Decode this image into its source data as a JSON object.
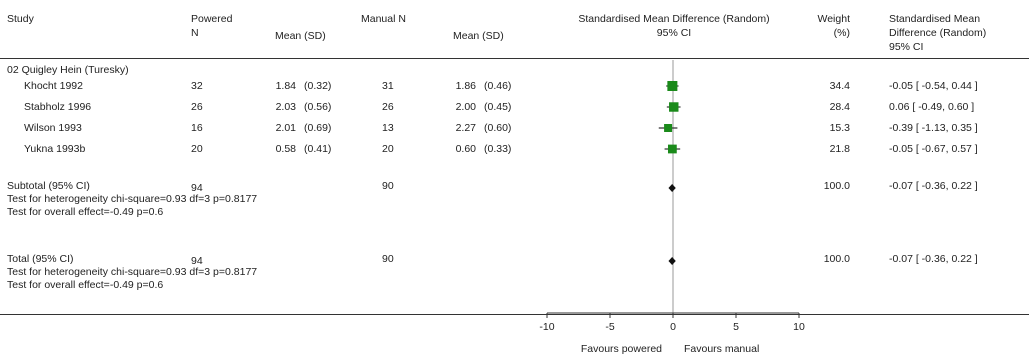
{
  "columns": {
    "study": "Study",
    "powered_n": [
      "Powered",
      "N"
    ],
    "powered_mean": "Mean (SD)",
    "manual_n": "Manual N",
    "manual_mean": "Mean (SD)",
    "effect_title": [
      "Standardised Mean Difference (Random)",
      "95% CI"
    ],
    "weight": [
      "Weight",
      "(%)"
    ],
    "effect_col": [
      "Standardised Mean",
      "Difference (Random)",
      "95% CI"
    ]
  },
  "group": {
    "name": "02 Quigley Hein (Turesky)",
    "studies": [
      {
        "name": "Khocht 1992",
        "pn": "32",
        "pmean": "1.84",
        "psd": "(0.32)",
        "mn": "31",
        "mmean": "1.86",
        "msd": "(0.46)",
        "weight": "34.4",
        "ci": "-0.05 [ -0.54, 0.44 ]"
      },
      {
        "name": "Stabholz 1996",
        "pn": "26",
        "pmean": "2.03",
        "psd": "(0.56)",
        "mn": "26",
        "mmean": "2.00",
        "msd": "(0.45)",
        "weight": "28.4",
        "ci": "0.06 [ -0.49, 0.60 ]"
      },
      {
        "name": "Wilson 1993",
        "pn": "16",
        "pmean": "2.01",
        "psd": "(0.69)",
        "mn": "13",
        "mmean": "2.27",
        "msd": "(0.60)",
        "weight": "15.3",
        "ci": "-0.39 [ -1.13, 0.35 ]"
      },
      {
        "name": "Yukna 1993b",
        "pn": "20",
        "pmean": "0.58",
        "psd": "(0.41)",
        "mn": "20",
        "mmean": "0.60",
        "msd": "(0.33)",
        "weight": "21.8",
        "ci": "-0.05 [ -0.67, 0.57 ]"
      }
    ],
    "subtotal": {
      "label": "Subtotal (95% CI)",
      "pn": "94",
      "mn": "90",
      "weight": "100.0",
      "ci": "-0.07 [ -0.36, 0.22 ]",
      "heterogeneity": "Test for heterogeneity chi-square=0.93 df=3 p=0.8177",
      "overall": "Test for overall effect=-0.49 p=0.6"
    }
  },
  "total": {
    "label": "Total (95% CI)",
    "pn": "94",
    "mn": "90",
    "weight": "100.0",
    "ci": "-0.07 [ -0.36, 0.22 ]",
    "heterogeneity": "Test for heterogeneity chi-square=0.93 df=3 p=0.8177",
    "overall": "Test for overall effect=-0.49 p=0.6"
  },
  "footer": {
    "left": "Favours powered",
    "right": "Favours manual"
  },
  "chart_data": {
    "type": "forest",
    "x_axis": {
      "min": -10,
      "max": 10,
      "ticks": [
        -10,
        -5,
        0,
        5,
        10
      ]
    },
    "studies": [
      {
        "name": "Khocht 1992",
        "estimate": -0.05,
        "lower": -0.54,
        "upper": 0.44,
        "weight": 34.4
      },
      {
        "name": "Stabholz 1996",
        "estimate": 0.06,
        "lower": -0.49,
        "upper": 0.6,
        "weight": 28.4
      },
      {
        "name": "Wilson 1993",
        "estimate": -0.39,
        "lower": -1.13,
        "upper": 0.35,
        "weight": 15.3
      },
      {
        "name": "Yukna 1993b",
        "estimate": -0.05,
        "lower": -0.67,
        "upper": 0.57,
        "weight": 21.8
      }
    ],
    "summaries": [
      {
        "name": "Subtotal (95% CI)",
        "estimate": -0.07,
        "lower": -0.36,
        "upper": 0.22
      },
      {
        "name": "Total (95% CI)",
        "estimate": -0.07,
        "lower": -0.36,
        "upper": 0.22
      }
    ],
    "colors": {
      "box": "#1a8a1a",
      "line": "#333333",
      "diamond": "#111111",
      "axis": "#999999"
    }
  }
}
